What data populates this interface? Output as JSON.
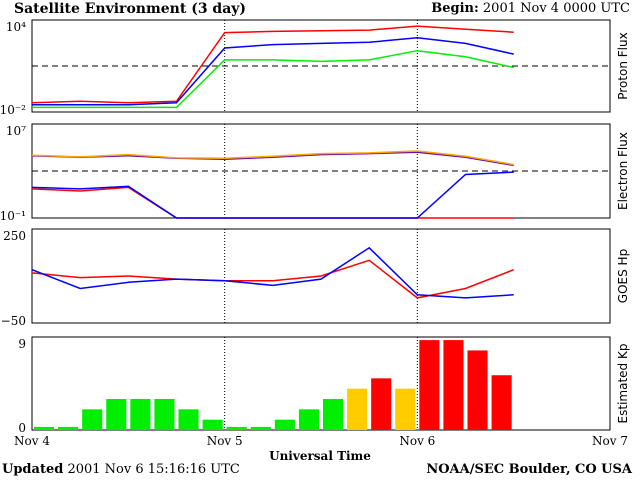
{
  "header": {
    "title": "Satellite Environment (3 day)",
    "begin_label": "Begin:",
    "begin_value": "2001 Nov 4 0000 UTC"
  },
  "footer": {
    "updated_label": "Updated",
    "updated_value": "2001 Nov  6 15:16:16 UTC",
    "credit": "NOAA/SEC Boulder, CO USA"
  },
  "colors": {
    "red": "#ff0000",
    "blue": "#0000ff",
    "green": "#00ee00",
    "yellow": "#ffcc00",
    "purple": "#6a0dad",
    "orange": "#ffa500"
  },
  "chart_data": [
    {
      "type": "line",
      "ylabel": "Proton Flux",
      "yscale": "log",
      "ylim": [
        0.01,
        10000
      ],
      "yticks": [
        "10⁴",
        "10⁻²"
      ],
      "threshold": 10,
      "x": [
        0,
        0.25,
        0.5,
        0.75,
        1.0,
        1.25,
        1.5,
        1.75,
        2.0,
        2.25,
        2.5
      ],
      "series": [
        {
          "color": "red",
          "values": [
            0.04,
            0.05,
            0.04,
            0.05,
            1500,
            1800,
            2000,
            2200,
            4000,
            2500,
            1600
          ]
        },
        {
          "color": "blue",
          "values": [
            0.03,
            0.03,
            0.03,
            0.04,
            150,
            250,
            300,
            350,
            700,
            300,
            60
          ]
        },
        {
          "color": "green",
          "values": [
            0.02,
            0.02,
            0.02,
            0.02,
            25,
            25,
            20,
            25,
            100,
            40,
            8
          ]
        }
      ]
    },
    {
      "type": "line",
      "ylabel": "Electron Flux",
      "yscale": "log",
      "ylim": [
        0.1,
        10000000
      ],
      "yticks": [
        "10⁷",
        "10⁻¹"
      ],
      "threshold": 1000,
      "x": [
        0,
        0.25,
        0.5,
        0.75,
        1.0,
        1.25,
        1.5,
        1.75,
        2.0,
        2.25,
        2.5
      ],
      "series": [
        {
          "color": "purple",
          "values": [
            20000,
            15000,
            20000,
            12000,
            10000,
            15000,
            25000,
            30000,
            40000,
            15000,
            3000
          ]
        },
        {
          "color": "orange",
          "values": [
            22000,
            16000,
            25000,
            13000,
            12000,
            18000,
            30000,
            35000,
            50000,
            18000,
            3500
          ]
        },
        {
          "color": "red",
          "values": [
            30,
            20,
            40,
            0.1,
            0.1,
            0.1,
            0.1,
            0.1,
            0.1,
            0.1,
            0.1
          ]
        },
        {
          "color": "blue",
          "values": [
            40,
            30,
            50,
            0.1,
            0.1,
            0.1,
            0.1,
            0.1,
            0.1,
            500,
            800
          ]
        }
      ]
    },
    {
      "type": "line",
      "ylabel": "GOES Hp",
      "ylim": [
        -50,
        250
      ],
      "yticks": [
        "250",
        "−50"
      ],
      "x": [
        0,
        0.25,
        0.5,
        0.75,
        1.0,
        1.25,
        1.5,
        1.75,
        2.0,
        2.25,
        2.5
      ],
      "series": [
        {
          "color": "red",
          "values": [
            110,
            95,
            100,
            90,
            85,
            85,
            100,
            150,
            30,
            60,
            120
          ]
        },
        {
          "color": "blue",
          "values": [
            120,
            60,
            80,
            90,
            85,
            70,
            90,
            190,
            40,
            30,
            40
          ]
        }
      ]
    },
    {
      "type": "bar",
      "ylabel": "Estimated Kp",
      "ylim": [
        0,
        9
      ],
      "yticks": [
        "9",
        "0"
      ],
      "xticks": [
        "Nov 4",
        "Nov 5",
        "Nov 6",
        "Nov 7"
      ],
      "xlabel": "Universal Time",
      "values": [
        0.3,
        0.3,
        2,
        3,
        3,
        3,
        2,
        1,
        0.3,
        0.3,
        1,
        2,
        3,
        4,
        5,
        4,
        8.7,
        8.7,
        7.7,
        5.3
      ],
      "colors": [
        "green",
        "green",
        "green",
        "green",
        "green",
        "green",
        "green",
        "green",
        "green",
        "green",
        "green",
        "green",
        "green",
        "yellow",
        "red",
        "yellow",
        "red",
        "red",
        "red",
        "red"
      ]
    }
  ]
}
